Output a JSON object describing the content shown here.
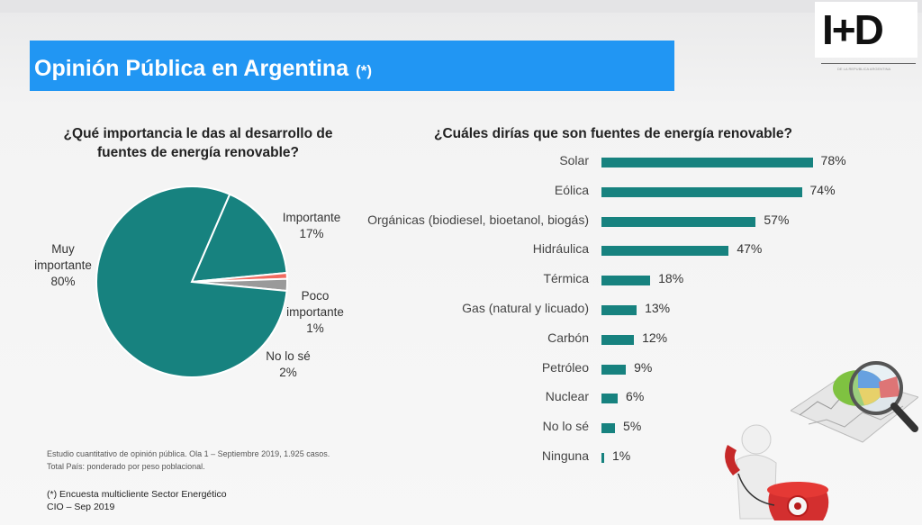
{
  "slide": {
    "title": "Opinión Pública en Argentina",
    "title_mark": "(*)",
    "logo_text": "I+D",
    "logo_caption": "DE LA REPUBLICA ARGENTINA"
  },
  "left_chart": {
    "question_line1": "¿Qué importancia le das al desarrollo de",
    "question_line2": "fuentes de energía renovable?",
    "labels": {
      "muy": [
        "Muy",
        "importante",
        "80%"
      ],
      "imp": [
        "Importante",
        "17%"
      ],
      "poco": [
        "Poco",
        "importante",
        "1%"
      ],
      "nose": [
        "No lo sé",
        "2%"
      ]
    }
  },
  "right_chart": {
    "question": "¿Cuáles dirías que son fuentes de energía renovable?"
  },
  "footnote": {
    "line1": "Estudio cuantitativo de opinión pública. Ola 1 – Septiembre 2019, 1.925 casos.",
    "line2": "Total País: ponderado por peso poblacional."
  },
  "source": {
    "line1": "(*) Encuesta multicliente Sector Energético",
    "line2": "CIO – Sep 2019"
  },
  "colors": {
    "teal": "#17827f",
    "banner": "#2196f3",
    "salmon": "#f26b60",
    "gray": "#9a9a9a"
  },
  "chart_data": [
    {
      "type": "pie",
      "title": "¿Qué importancia le das al desarrollo de fuentes de energía renovable?",
      "slices": [
        {
          "name": "Muy importante",
          "value": 80,
          "label": "80%",
          "color": "#17827f"
        },
        {
          "name": "Importante",
          "value": 17,
          "label": "17%",
          "color": "#17827f"
        },
        {
          "name": "Poco importante",
          "value": 1,
          "label": "1%",
          "color": "#f26b60"
        },
        {
          "name": "No lo sé",
          "value": 2,
          "label": "2%",
          "color": "#9a9a9a"
        }
      ]
    },
    {
      "type": "bar",
      "orientation": "horizontal",
      "title": "¿Cuáles dirías que son fuentes de energía renovable?",
      "categories": [
        "Solar",
        "Eólica",
        "Orgánicas (biodiesel, bioetanol, biogás)",
        "Hidráulica",
        "Térmica",
        "Gas (natural y licuado)",
        "Carbón",
        "Petróleo",
        "Nuclear",
        "No lo sé",
        "Ninguna"
      ],
      "values": [
        78,
        74,
        57,
        47,
        18,
        13,
        12,
        9,
        6,
        5,
        1
      ],
      "value_labels": [
        "78%",
        "74%",
        "57%",
        "47%",
        "18%",
        "13%",
        "12%",
        "9%",
        "6%",
        "5%",
        "1%"
      ],
      "color": "#17827f",
      "ylim": [
        0,
        80
      ]
    }
  ]
}
